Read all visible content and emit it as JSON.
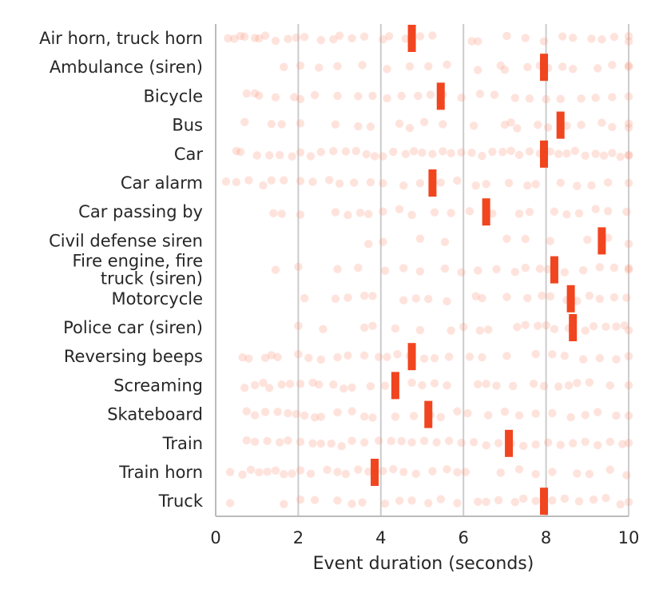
{
  "chart_data": {
    "type": "scatter",
    "xlabel": "Event duration (seconds)",
    "ylabel": "",
    "xlim": [
      0,
      10
    ],
    "xticks": [
      0,
      2,
      4,
      6,
      8,
      10
    ],
    "grid": "vertical",
    "colors": {
      "points": "#fb9a80",
      "median": "#f1451f",
      "grid": "#cccccc",
      "axis": "#bbbbbb",
      "text": "#262626"
    },
    "categories": [
      {
        "label": [
          "Air horn, truck horn"
        ],
        "median": 4.75,
        "points": [
          0.3,
          0.45,
          0.6,
          0.7,
          0.95,
          1.05,
          1.2,
          1.45,
          1.75,
          1.95,
          2.15,
          2.55,
          2.85,
          3.0,
          3.3,
          3.6,
          4.05,
          4.2,
          4.6,
          4.75,
          4.95,
          5.25,
          6.2,
          6.35,
          7.05,
          7.5,
          7.95,
          8.4,
          8.65,
          9.1,
          9.35,
          9.65,
          10.0,
          10.0
        ]
      },
      {
        "label": [
          "Ambulance (siren)"
        ],
        "median": 7.95,
        "points": [
          1.65,
          2.05,
          2.5,
          2.95,
          3.55,
          4.15,
          4.7,
          5.15,
          5.6,
          6.35,
          6.9,
          7.0,
          7.55,
          7.85,
          8.05,
          8.4,
          8.65,
          9.25,
          9.6,
          10.0,
          10.0
        ]
      },
      {
        "label": [
          "Bicycle"
        ],
        "median": 5.45,
        "points": [
          0.75,
          0.95,
          1.05,
          1.45,
          1.9,
          2.05,
          2.4,
          2.95,
          3.45,
          3.8,
          4.15,
          4.5,
          4.9,
          5.2,
          5.5,
          5.95,
          6.4,
          6.75,
          7.25,
          7.6,
          8.0,
          8.35,
          8.85,
          9.2,
          9.6,
          10.0
        ]
      },
      {
        "label": [
          "Bus"
        ],
        "median": 8.35,
        "points": [
          0.7,
          1.35,
          1.6,
          2.05,
          2.9,
          3.45,
          3.75,
          4.45,
          4.7,
          5.05,
          5.5,
          6.25,
          7.0,
          7.15,
          7.3,
          7.8,
          8.05,
          8.5,
          8.85,
          9.35,
          9.6,
          10.0,
          10.0
        ]
      },
      {
        "label": [
          "Car"
        ],
        "median": 7.95,
        "points": [
          0.5,
          0.6,
          1.0,
          1.3,
          1.55,
          1.85,
          2.05,
          2.3,
          2.55,
          2.85,
          3.15,
          3.4,
          3.65,
          3.85,
          4.05,
          4.3,
          4.6,
          4.8,
          5.0,
          5.25,
          5.5,
          5.7,
          5.95,
          6.2,
          6.45,
          6.7,
          6.95,
          7.15,
          7.35,
          7.6,
          7.85,
          8.1,
          8.3,
          8.5,
          8.7,
          8.95,
          9.2,
          9.4,
          9.6,
          9.8,
          10.0,
          10.0
        ]
      },
      {
        "label": [
          "Car alarm"
        ],
        "median": 5.25,
        "points": [
          0.25,
          0.5,
          0.8,
          1.15,
          1.35,
          1.65,
          2.05,
          2.35,
          2.75,
          3.0,
          3.35,
          3.75,
          4.05,
          4.55,
          4.95,
          5.45,
          5.85,
          6.3,
          6.55,
          7.1,
          7.55,
          7.75,
          8.35,
          8.75,
          9.1,
          9.5,
          10.0
        ]
      },
      {
        "label": [
          "Car passing by"
        ],
        "median": 6.55,
        "points": [
          1.4,
          1.6,
          2.05,
          2.9,
          3.2,
          3.5,
          3.7,
          4.05,
          4.45,
          4.75,
          5.3,
          5.7,
          6.15,
          6.7,
          7.35,
          7.6,
          8.2,
          8.5,
          8.8,
          9.2,
          9.5,
          9.95
        ]
      },
      {
        "label": [
          "Civil defense siren"
        ],
        "median": 9.35,
        "points": [
          3.7,
          4.05,
          4.95,
          5.55,
          7.05,
          7.5,
          8.1,
          9.0,
          9.5,
          10.0
        ]
      },
      {
        "label": [
          "Fire engine, fire",
          "truck (siren)"
        ],
        "median": 8.2,
        "points": [
          1.45,
          2.0,
          2.95,
          3.45,
          4.1,
          4.55,
          4.95,
          5.55,
          5.95,
          6.35,
          6.8,
          7.25,
          7.5,
          7.85,
          8.05,
          8.45,
          8.9,
          9.3,
          9.65,
          10.0,
          10.0
        ]
      },
      {
        "label": [
          "Motorcycle"
        ],
        "median": 8.6,
        "points": [
          2.15,
          2.9,
          3.2,
          3.6,
          3.8,
          4.55,
          4.85,
          5.15,
          5.6,
          6.3,
          6.45,
          7.05,
          7.55,
          7.9,
          8.1,
          8.5,
          8.75,
          9.05,
          9.3,
          9.65,
          9.95
        ]
      },
      {
        "label": [
          "Police car (siren)"
        ],
        "median": 8.65,
        "points": [
          2.0,
          2.6,
          3.6,
          3.8,
          4.35,
          4.95,
          5.7,
          6.0,
          6.4,
          6.6,
          7.3,
          7.5,
          7.8,
          8.0,
          8.2,
          8.55,
          8.95,
          9.15,
          9.45,
          9.7,
          9.9,
          10.0
        ]
      },
      {
        "label": [
          "Reversing beeps"
        ],
        "median": 4.75,
        "points": [
          0.65,
          0.8,
          1.2,
          1.35,
          1.5,
          2.0,
          2.25,
          2.55,
          2.95,
          3.2,
          3.6,
          3.95,
          4.15,
          4.4,
          4.7,
          5.05,
          5.3,
          5.65,
          6.15,
          6.45,
          7.05,
          7.75,
          8.15,
          8.45,
          8.9,
          9.3,
          9.7,
          10.0
        ]
      },
      {
        "label": [
          "Screaming"
        ],
        "median": 4.35,
        "points": [
          0.7,
          0.95,
          1.15,
          1.3,
          1.6,
          1.8,
          2.05,
          2.35,
          2.5,
          2.85,
          3.1,
          3.3,
          3.75,
          4.1,
          4.75,
          5.0,
          5.3,
          5.6,
          6.35,
          6.55,
          6.8,
          7.2,
          7.7,
          7.95,
          8.3,
          8.55,
          8.75,
          9.05,
          9.55,
          10.0
        ]
      },
      {
        "label": [
          "Skateboard"
        ],
        "median": 5.15,
        "points": [
          0.75,
          0.95,
          1.2,
          1.5,
          1.75,
          1.95,
          2.15,
          2.4,
          2.55,
          2.95,
          3.3,
          3.6,
          3.8,
          4.35,
          4.8,
          5.2,
          5.45,
          5.85,
          6.1,
          6.6,
          7.0,
          7.35,
          7.75,
          8.15,
          8.6,
          8.95,
          9.25,
          9.7,
          10.0
        ]
      },
      {
        "label": [
          "Train"
        ],
        "median": 7.1,
        "points": [
          0.75,
          0.95,
          1.25,
          1.55,
          1.75,
          2.05,
          2.35,
          2.55,
          2.8,
          3.05,
          3.3,
          3.6,
          3.95,
          4.25,
          4.5,
          4.75,
          5.05,
          5.35,
          5.65,
          5.95,
          6.25,
          6.55,
          6.85,
          7.15,
          7.45,
          7.75,
          8.05,
          8.35,
          8.65,
          8.95,
          9.25,
          9.55,
          9.85,
          10.0
        ]
      },
      {
        "label": [
          "Train horn"
        ],
        "median": 3.85,
        "points": [
          0.35,
          0.65,
          0.85,
          1.05,
          1.25,
          1.45,
          1.65,
          1.85,
          2.05,
          2.3,
          2.7,
          2.95,
          3.15,
          3.45,
          3.7,
          4.05,
          4.3,
          4.55,
          4.85,
          5.25,
          5.6,
          5.85,
          6.05,
          6.9,
          7.35,
          7.75,
          8.15,
          8.75,
          9.05,
          9.55,
          9.95
        ]
      },
      {
        "label": [
          "Truck"
        ],
        "median": 7.95,
        "points": [
          0.35,
          1.65,
          2.05,
          2.4,
          2.95,
          3.3,
          3.55,
          4.1,
          4.45,
          4.75,
          5.15,
          5.45,
          5.85,
          6.35,
          6.55,
          6.85,
          7.25,
          7.45,
          7.75,
          8.15,
          8.45,
          8.8,
          9.15,
          9.45,
          9.8,
          10.0
        ]
      }
    ]
  }
}
